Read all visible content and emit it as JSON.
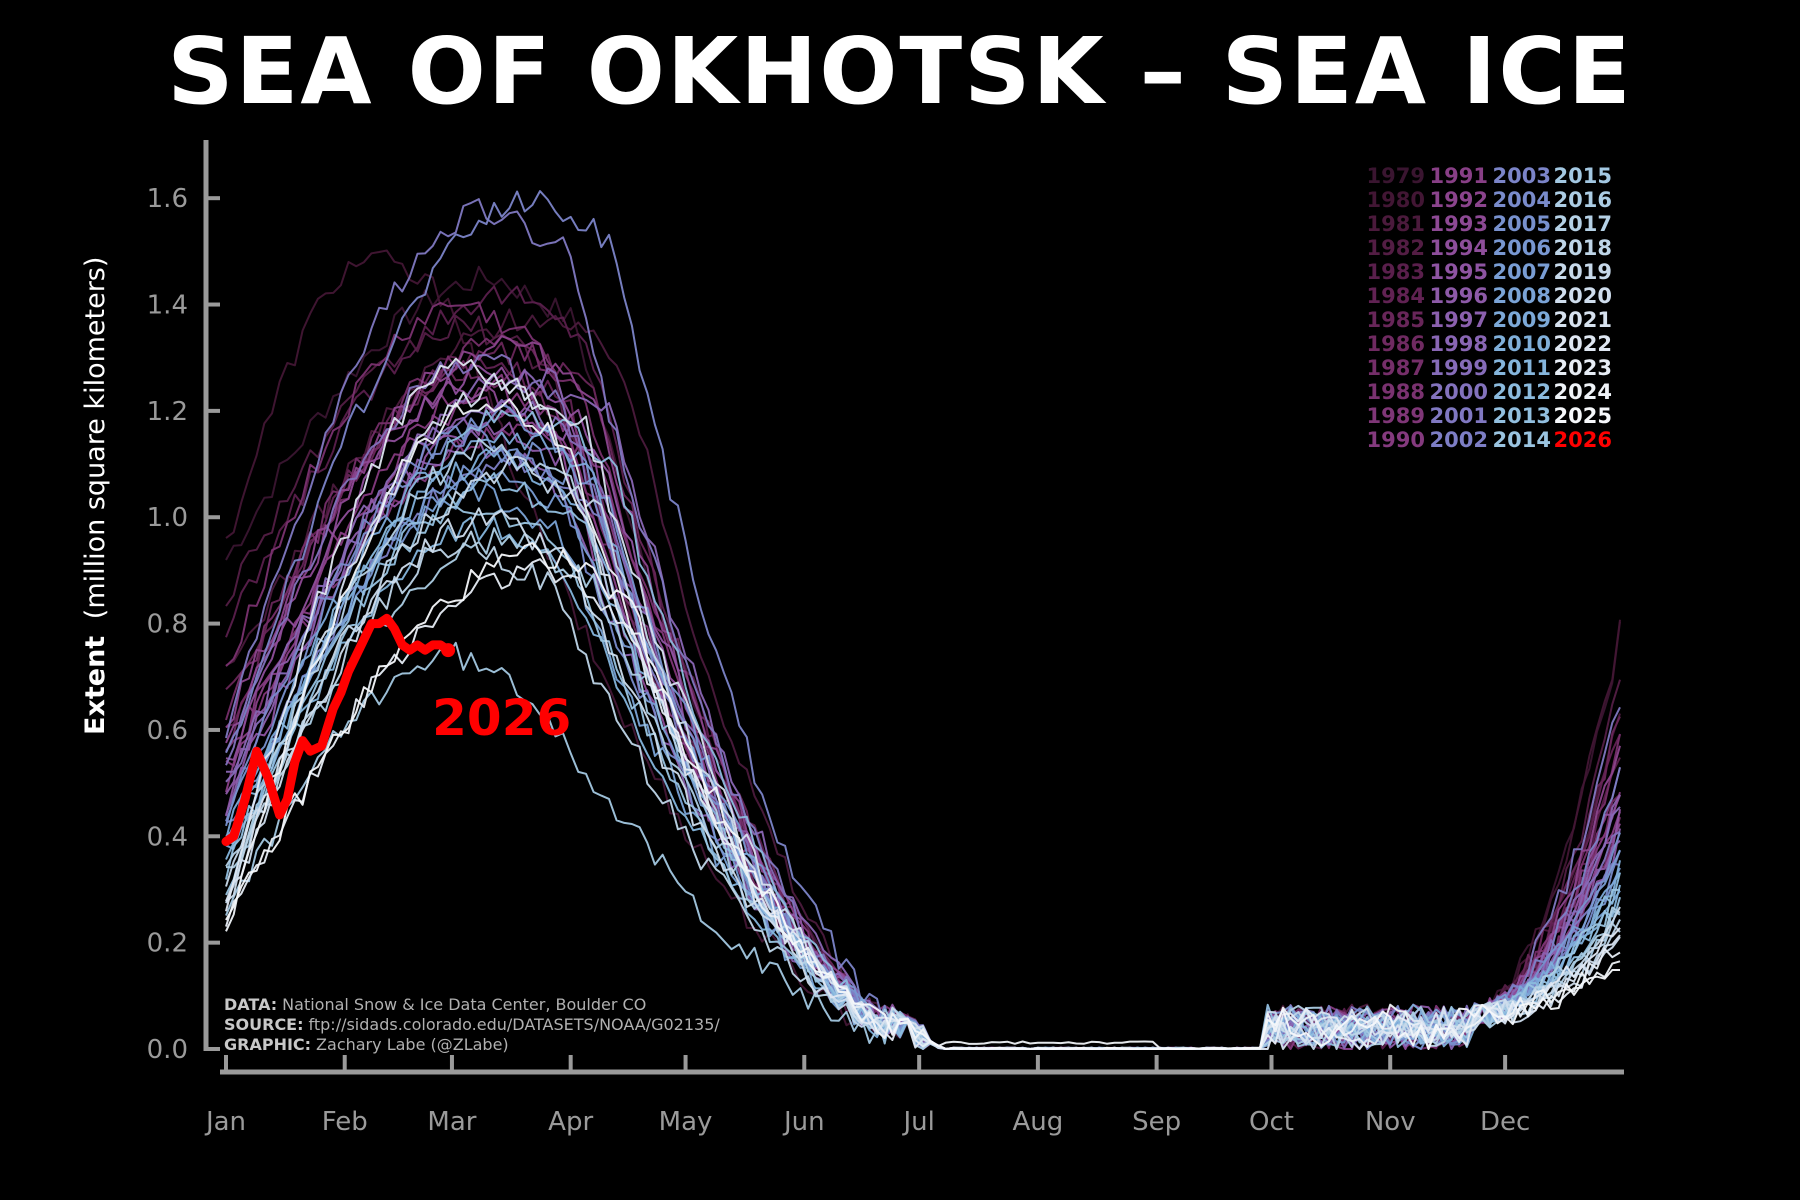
{
  "title": "SEA OF OKHOTSK – SEA ICE",
  "credits": [
    {
      "key": "DATA:",
      "text": "National Snow & Ice Data Center, Boulder CO"
    },
    {
      "key": "SOURCE:",
      "text": "ftp://sidads.colorado.edu/DATASETS/NOAA/G02135/"
    },
    {
      "key": "GRAPHIC:",
      "text": "Zachary Labe (@ZLabe)"
    }
  ],
  "chart_data": {
    "type": "line",
    "title": "SEA OF OKHOTSK – SEA ICE",
    "xlabel": "",
    "ylabel": "Extent",
    "ylabel_suffix": "(million square kilometers)",
    "x_unit": "day of year",
    "xlim": [
      1,
      365
    ],
    "ylim": [
      0,
      1.7
    ],
    "yticks": [
      0.0,
      0.2,
      0.4,
      0.6,
      0.8,
      1.0,
      1.2,
      1.4,
      1.6
    ],
    "ytick_labels": [
      "0.0",
      "0.2",
      "0.4",
      "0.6",
      "0.8",
      "1.0",
      "1.2",
      "1.4",
      "1.6"
    ],
    "month_ticks": [
      {
        "label": "Jan",
        "day": 1
      },
      {
        "label": "Feb",
        "day": 32
      },
      {
        "label": "Mar",
        "day": 60
      },
      {
        "label": "Apr",
        "day": 91
      },
      {
        "label": "May",
        "day": 121
      },
      {
        "label": "Jun",
        "day": 152
      },
      {
        "label": "Jul",
        "day": 182
      },
      {
        "label": "Aug",
        "day": 213
      },
      {
        "label": "Sep",
        "day": 244
      },
      {
        "label": "Oct",
        "day": 274
      },
      {
        "label": "Nov",
        "day": 305
      },
      {
        "label": "Dec",
        "day": 335
      }
    ],
    "grid": false,
    "legend_placement": "top-right",
    "highlight": {
      "year": "2026",
      "color": "#ff0000",
      "label": "2026",
      "x": [
        1,
        3,
        6,
        9,
        12,
        15,
        17,
        19,
        21,
        23,
        26,
        29,
        31,
        33,
        35,
        37,
        39,
        41,
        43,
        45,
        47,
        49,
        51,
        53,
        55,
        57,
        59
      ],
      "y": [
        0.39,
        0.4,
        0.47,
        0.56,
        0.51,
        0.44,
        0.47,
        0.54,
        0.58,
        0.56,
        0.57,
        0.64,
        0.67,
        0.71,
        0.74,
        0.77,
        0.8,
        0.8,
        0.81,
        0.79,
        0.76,
        0.75,
        0.76,
        0.75,
        0.76,
        0.76,
        0.75
      ]
    },
    "series": [
      {
        "name": "1979",
        "color": "#3a1530",
        "peak": 1.45,
        "peak_day": 72,
        "jan1": 0.92,
        "dec31": 0.78
      },
      {
        "name": "1980",
        "color": "#421634",
        "peak": 1.49,
        "peak_day": 40,
        "jan1": 0.95,
        "dec31": 0.79
      },
      {
        "name": "1981",
        "color": "#4b1a3c",
        "peak": 1.38,
        "peak_day": 84,
        "jan1": 0.7,
        "dec31": 0.62
      },
      {
        "name": "1982",
        "color": "#531d44",
        "peak": 1.36,
        "peak_day": 66,
        "jan1": 0.85,
        "dec31": 0.69
      },
      {
        "name": "1983",
        "color": "#5a1f4c",
        "peak": 1.42,
        "peak_day": 75,
        "jan1": 0.78,
        "dec31": 0.55
      },
      {
        "name": "1984",
        "color": "#612253",
        "peak": 1.3,
        "peak_day": 70,
        "jan1": 0.6,
        "dec31": 0.6
      },
      {
        "name": "1985",
        "color": "#682659",
        "peak": 1.31,
        "peak_day": 78,
        "jan1": 0.66,
        "dec31": 0.64
      },
      {
        "name": "1986",
        "color": "#6f2a61",
        "peak": 1.28,
        "peak_day": 68,
        "jan1": 0.58,
        "dec31": 0.5
      },
      {
        "name": "1987",
        "color": "#752e69",
        "peak": 1.33,
        "peak_day": 74,
        "jan1": 0.63,
        "dec31": 0.57
      },
      {
        "name": "1988",
        "color": "#7a3270",
        "peak": 1.4,
        "peak_day": 64,
        "jan1": 0.72,
        "dec31": 0.42
      },
      {
        "name": "1989",
        "color": "#7f3677",
        "peak": 1.17,
        "peak_day": 80,
        "jan1": 0.55,
        "dec31": 0.52
      },
      {
        "name": "1990",
        "color": "#843a7e",
        "peak": 1.25,
        "peak_day": 72,
        "jan1": 0.52,
        "dec31": 0.48
      },
      {
        "name": "1991",
        "color": "#883f86",
        "peak": 1.21,
        "peak_day": 70,
        "jan1": 0.5,
        "dec31": 0.45
      },
      {
        "name": "1992",
        "color": "#8b448d",
        "peak": 1.33,
        "peak_day": 76,
        "jan1": 0.61,
        "dec31": 0.58
      },
      {
        "name": "1993",
        "color": "#8d4994",
        "peak": 1.24,
        "peak_day": 66,
        "jan1": 0.57,
        "dec31": 0.44
      },
      {
        "name": "1994",
        "color": "#8e4e9b",
        "peak": 1.28,
        "peak_day": 73,
        "jan1": 0.53,
        "dec31": 0.5
      },
      {
        "name": "1995",
        "color": "#8e54a2",
        "peak": 1.2,
        "peak_day": 79,
        "jan1": 0.46,
        "dec31": 0.43
      },
      {
        "name": "1996",
        "color": "#8d5aa8",
        "peak": 1.18,
        "peak_day": 71,
        "jan1": 0.49,
        "dec31": 0.4
      },
      {
        "name": "1997",
        "color": "#8b60ae",
        "peak": 1.14,
        "peak_day": 68,
        "jan1": 0.44,
        "dec31": 0.47
      },
      {
        "name": "1998",
        "color": "#8966b4",
        "peak": 1.27,
        "peak_day": 82,
        "jan1": 0.51,
        "dec31": 0.39
      },
      {
        "name": "1999",
        "color": "#866cb9",
        "peak": 1.22,
        "peak_day": 75,
        "jan1": 0.48,
        "dec31": 0.46
      },
      {
        "name": "2000",
        "color": "#8372bd",
        "peak": 1.3,
        "peak_day": 69,
        "jan1": 0.55,
        "dec31": 0.42
      },
      {
        "name": "2001",
        "color": "#8078c1",
        "peak": 1.58,
        "peak_day": 70,
        "jan1": 0.59,
        "dec31": 0.66
      },
      {
        "name": "2002",
        "color": "#7d7ec5",
        "peak": 1.1,
        "peak_day": 77,
        "jan1": 0.42,
        "dec31": 0.37
      },
      {
        "name": "2003",
        "color": "#7b84c8",
        "peak": 1.6,
        "peak_day": 82,
        "jan1": 0.54,
        "dec31": 0.51
      },
      {
        "name": "2004",
        "color": "#798bcb",
        "peak": 1.15,
        "peak_day": 67,
        "jan1": 0.45,
        "dec31": 0.36
      },
      {
        "name": "2005",
        "color": "#7891ce",
        "peak": 1.19,
        "peak_day": 74,
        "jan1": 0.43,
        "dec31": 0.4
      },
      {
        "name": "2006",
        "color": "#7897d1",
        "peak": 1.12,
        "peak_day": 80,
        "jan1": 0.4,
        "dec31": 0.34
      },
      {
        "name": "2007",
        "color": "#799dd4",
        "peak": 1.08,
        "peak_day": 72,
        "jan1": 0.38,
        "dec31": 0.38
      },
      {
        "name": "2008",
        "color": "#7aa3d6",
        "peak": 1.05,
        "peak_day": 68,
        "jan1": 0.36,
        "dec31": 0.31
      },
      {
        "name": "2009",
        "color": "#7ca9d8",
        "peak": 1.16,
        "peak_day": 76,
        "jan1": 0.41,
        "dec31": 0.35
      },
      {
        "name": "2010",
        "color": "#80afda",
        "peak": 1.11,
        "peak_day": 73,
        "jan1": 0.39,
        "dec31": 0.33
      },
      {
        "name": "2011",
        "color": "#85b5dc",
        "peak": 0.98,
        "peak_day": 70,
        "jan1": 0.35,
        "dec31": 0.29
      },
      {
        "name": "2012",
        "color": "#8bbadd",
        "peak": 1.2,
        "peak_day": 81,
        "jan1": 0.37,
        "dec31": 0.32
      },
      {
        "name": "2013",
        "color": "#92bfdf",
        "peak": 1.07,
        "peak_day": 74,
        "jan1": 0.34,
        "dec31": 0.28
      },
      {
        "name": "2014",
        "color": "#9ac4e0",
        "peak": 1.03,
        "peak_day": 69,
        "jan1": 0.3,
        "dec31": 0.3
      },
      {
        "name": "2015",
        "color": "#a3c8e2",
        "peak": 0.74,
        "peak_day": 62,
        "jan1": 0.25,
        "dec31": 0.26
      },
      {
        "name": "2016",
        "color": "#accde4",
        "peak": 0.96,
        "peak_day": 77,
        "jan1": 0.33,
        "dec31": 0.27
      },
      {
        "name": "2017",
        "color": "#b5d1e6",
        "peak": 1.13,
        "peak_day": 72,
        "jan1": 0.32,
        "dec31": 0.24
      },
      {
        "name": "2018",
        "color": "#bed5e8",
        "peak": 0.95,
        "peak_day": 66,
        "jan1": 0.29,
        "dec31": 0.22
      },
      {
        "name": "2019",
        "color": "#c7d9ea",
        "peak": 1.09,
        "peak_day": 79,
        "jan1": 0.31,
        "dec31": 0.25
      },
      {
        "name": "2020",
        "color": "#cfdded",
        "peak": 1.0,
        "peak_day": 71,
        "jan1": 0.27,
        "dec31": 0.2
      },
      {
        "name": "2021",
        "color": "#d7e2ef",
        "peak": 1.25,
        "peak_day": 75,
        "jan1": 0.26,
        "dec31": 0.21
      },
      {
        "name": "2022",
        "color": "#dfe7f2",
        "peak": 1.28,
        "peak_day": 65,
        "jan1": 0.28,
        "dec31": 0.23
      },
      {
        "name": "2023",
        "color": "#e7edf5",
        "peak": 0.9,
        "peak_day": 84,
        "jan1": 0.24,
        "dec31": 0.19
      },
      {
        "name": "2024",
        "color": "#eff3f8",
        "peak": 1.22,
        "peak_day": 70,
        "jan1": 0.22,
        "dec31": 0.18
      },
      {
        "name": "2025",
        "color": "#f6f8fb",
        "peak": 0.93,
        "peak_day": 86,
        "jan1": 0.23,
        "dec31": 0.17
      },
      {
        "name": "2026",
        "color": "#ff0000"
      }
    ]
  }
}
